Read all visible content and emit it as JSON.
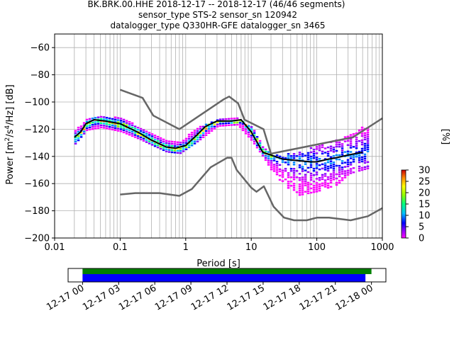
{
  "title_lines": [
    "BK.BRK.00.HHE   2018-12-17 -- 2018-12-17  (46/46 segments)",
    "sensor_type STS-2 sensor_sn 120942",
    "datalogger_type Q330HR-GFE datalogger_sn 3465"
  ],
  "chart_data": [
    {
      "type": "heatmap",
      "xlabel": "Period [s]",
      "ylabel": "Power [m^2/s^4/Hz] [dB]",
      "xscale": "log",
      "xlim": [
        0.01,
        1000
      ],
      "ylim": [
        -200,
        -50
      ],
      "x_ticks": [
        "0.01",
        "0.1",
        "1",
        "10",
        "100",
        "1000"
      ],
      "y_ticks": [
        "-60",
        "-80",
        "-100",
        "-120",
        "-140",
        "-160",
        "-180",
        "-200"
      ],
      "grid": true,
      "colorbar": {
        "label": "[%]",
        "range": [
          0,
          30
        ],
        "ticks": [
          "0",
          "5",
          "10",
          "15",
          "20",
          "25",
          "30"
        ]
      },
      "series": [
        {
          "name": "",
          "role": "new_high_noise_model",
          "color": "#666666",
          "x": [
            0.1,
            0.22,
            0.32,
            0.8,
            3.8,
            4.6,
            6.3,
            7.9,
            15.4,
            20,
            354.8,
            1000
          ],
          "y": [
            -91,
            -97,
            -110,
            -120,
            -98,
            -96,
            -101,
            -113,
            -120,
            -138,
            -126,
            -112
          ]
        },
        {
          "name": "",
          "role": "new_low_noise_model",
          "color": "#666666",
          "x": [
            0.1,
            0.17,
            0.4,
            0.8,
            1.24,
            2.4,
            4.3,
            5,
            6,
            10,
            12,
            15.6,
            21.9,
            31.6,
            45,
            70,
            101,
            154,
            328,
            600,
            1000
          ],
          "y": [
            -168,
            -167,
            -167,
            -169,
            -164,
            -148,
            -141,
            -141,
            -150,
            -163,
            -166,
            -162,
            -177,
            -185,
            -187,
            -187,
            -185,
            -185,
            -187,
            -184,
            -178
          ]
        },
        {
          "name": "",
          "role": "mode",
          "color": "#000000",
          "x": [
            0.02,
            0.025,
            0.03,
            0.04,
            0.06,
            0.1,
            0.15,
            0.2,
            0.3,
            0.5,
            0.7,
            1.0,
            1.5,
            2,
            3,
            5,
            7,
            10,
            15,
            20,
            30,
            50,
            80,
            100,
            150,
            200,
            300,
            500
          ],
          "y": [
            -126,
            -122,
            -116,
            -113,
            -114,
            -116,
            -120,
            -123,
            -128,
            -133,
            -134,
            -132,
            -124,
            -118,
            -114,
            -114,
            -113,
            -122,
            -137,
            -139,
            -142,
            -143,
            -144,
            -144,
            -142,
            -141,
            -139,
            -137
          ]
        }
      ],
      "density_envelope": {
        "x": [
          0.02,
          0.03,
          0.05,
          0.1,
          0.2,
          0.5,
          0.8,
          1.5,
          3,
          6,
          10,
          15,
          20,
          30,
          50,
          100,
          200,
          300,
          600
        ],
        "upper": [
          -120,
          -112,
          -110,
          -111,
          -118,
          -128,
          -128,
          -118,
          -112,
          -111,
          -118,
          -133,
          -137,
          -138,
          -136,
          -131,
          -127,
          -122,
          -116
        ],
        "lower": [
          -130,
          -120,
          -118,
          -121,
          -127,
          -136,
          -137,
          -128,
          -117,
          -116,
          -128,
          -140,
          -150,
          -160,
          -168,
          -165,
          -160,
          -152,
          -148
        ]
      },
      "colors": {
        "model_lines": "#666666",
        "mode_line": "#000000",
        "grid": "#b0b0b0"
      }
    },
    {
      "type": "timeline",
      "x_ticks": [
        "12-17 00",
        "12-17 03",
        "12-17 06",
        "12-17 09",
        "12-17 12",
        "12-17 15",
        "12-17 18",
        "12-17 21",
        "12-18 00"
      ],
      "series": [
        {
          "name": "",
          "color": "#008000",
          "start_h": 0,
          "end_h": 24
        },
        {
          "name": "",
          "color": "#0000ff",
          "start_h": 0,
          "end_h": 23.5
        }
      ],
      "xlim_h": [
        -1.2,
        25.2
      ]
    }
  ]
}
